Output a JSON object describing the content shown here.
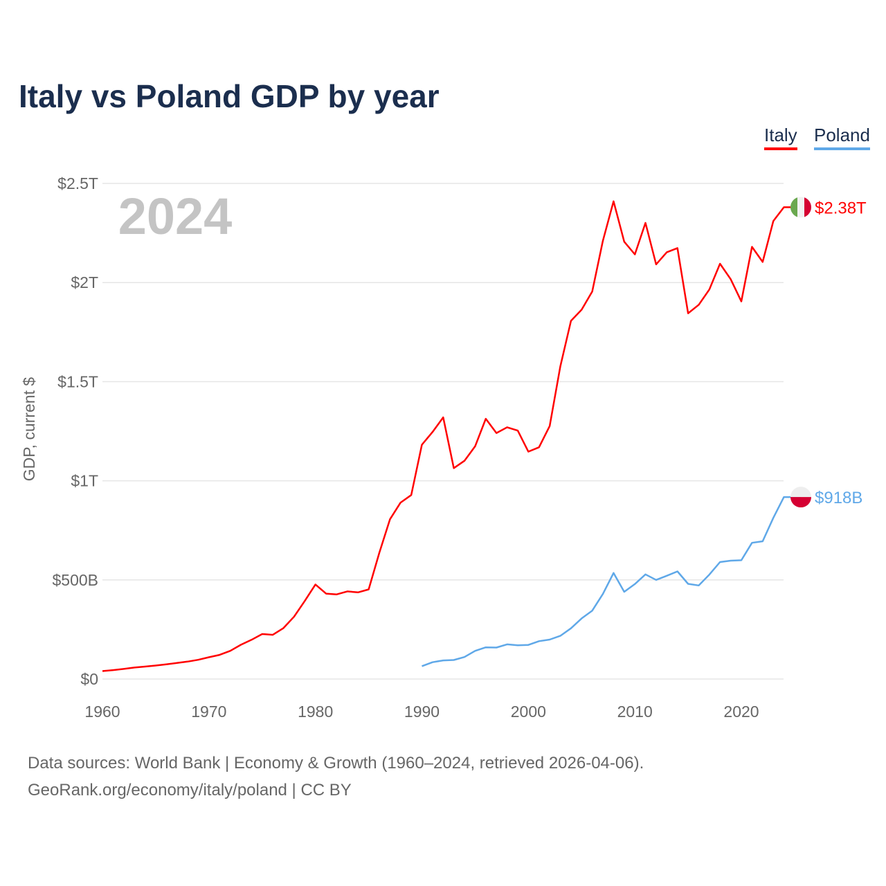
{
  "chart_data": {
    "type": "line",
    "title": "Italy vs Poland GDP by year",
    "ylabel": "GDP, current $",
    "xlabel": "",
    "year_watermark": "2024",
    "xlim": [
      1960,
      2024
    ],
    "ylim": [
      0,
      2.5
    ],
    "x_ticks": [
      {
        "v": 1960,
        "label": "1960"
      },
      {
        "v": 1970,
        "label": "1970"
      },
      {
        "v": 1980,
        "label": "1980"
      },
      {
        "v": 1990,
        "label": "1990"
      },
      {
        "v": 2000,
        "label": "2000"
      },
      {
        "v": 2010,
        "label": "2010"
      },
      {
        "v": 2020,
        "label": "2020"
      }
    ],
    "y_ticks": [
      {
        "v": 0,
        "label": "$0"
      },
      {
        "v": 0.5,
        "label": "$500B"
      },
      {
        "v": 1,
        "label": "$1T"
      },
      {
        "v": 1.5,
        "label": "$1.5T"
      },
      {
        "v": 2,
        "label": "$2T"
      },
      {
        "v": 2.5,
        "label": "$2.5T"
      }
    ],
    "grid": true,
    "legend_position": "top-right",
    "series": [
      {
        "name": "Italy",
        "color": "#ff0000",
        "end_label": "$2.38T",
        "start_year": 1960,
        "values": [
          0.04,
          0.045,
          0.051,
          0.058,
          0.063,
          0.068,
          0.074,
          0.081,
          0.088,
          0.097,
          0.11,
          0.122,
          0.142,
          0.173,
          0.198,
          0.227,
          0.223,
          0.257,
          0.315,
          0.394,
          0.477,
          0.431,
          0.427,
          0.442,
          0.437,
          0.452,
          0.637,
          0.806,
          0.89,
          0.928,
          1.182,
          1.246,
          1.32,
          1.064,
          1.101,
          1.174,
          1.313,
          1.241,
          1.27,
          1.253,
          1.147,
          1.169,
          1.276,
          1.577,
          1.807,
          1.863,
          1.955,
          2.211,
          2.41,
          2.206,
          2.142,
          2.301,
          2.092,
          2.153,
          2.174,
          1.845,
          1.888,
          1.965,
          2.095,
          2.017,
          1.905,
          2.18,
          2.104,
          2.31,
          2.38
        ]
      },
      {
        "name": "Poland",
        "color": "#5fa8e8",
        "end_label": "$918B",
        "start_year": 1990,
        "values": [
          0.065,
          0.085,
          0.094,
          0.096,
          0.111,
          0.142,
          0.16,
          0.159,
          0.175,
          0.17,
          0.172,
          0.191,
          0.199,
          0.218,
          0.256,
          0.306,
          0.345,
          0.429,
          0.535,
          0.44,
          0.479,
          0.528,
          0.5,
          0.521,
          0.543,
          0.48,
          0.472,
          0.527,
          0.59,
          0.597,
          0.599,
          0.687,
          0.695,
          0.813,
          0.918
        ]
      }
    ]
  },
  "footer": {
    "line1": "Data sources: World Bank | Economy & Growth (1960–2024, retrieved 2026-04-06).",
    "line2": "GeoRank.org/economy/italy/poland | CC BY"
  }
}
